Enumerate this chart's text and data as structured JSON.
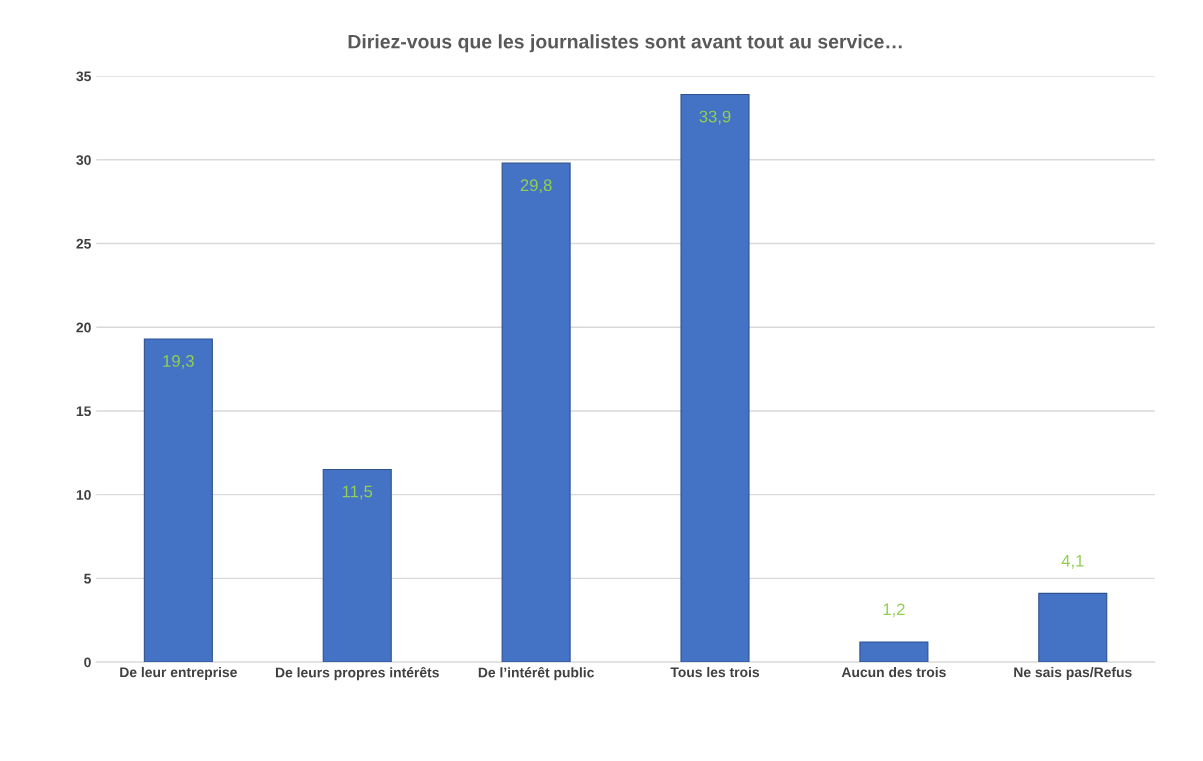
{
  "chart_data": {
    "type": "bar",
    "title": "Diriez-vous que les journalistes sont avant tout au service…",
    "categories": [
      "De leur entreprise",
      "De leurs propres intérêts",
      "De l’intérêt public",
      "Tous les trois",
      "Aucun des trois",
      "Ne sais pas/Refus"
    ],
    "values": [
      19.3,
      11.5,
      29.8,
      33.9,
      1.2,
      4.1
    ],
    "value_labels": [
      "19,3",
      "11,5",
      "29,8",
      "33,9",
      "1,2",
      "4,1"
    ],
    "color": "#4472c4",
    "ylim": [
      0,
      35
    ],
    "yticks": [
      0,
      5,
      10,
      15,
      20,
      25,
      30,
      35
    ],
    "grid": "y",
    "legend": false
  }
}
